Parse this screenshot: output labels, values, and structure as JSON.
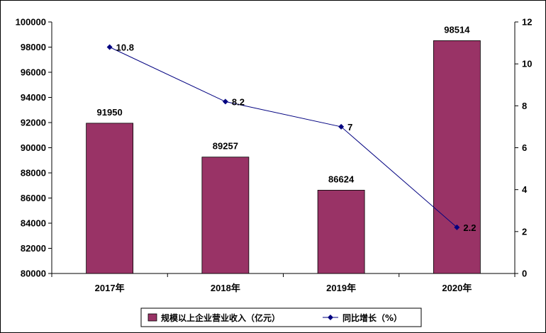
{
  "chart_data": {
    "type": "bar",
    "categories": [
      "2017年",
      "2018年",
      "2019年",
      "2020年"
    ],
    "series": [
      {
        "name": "规模以上企业营业收入（亿元）",
        "type": "bar",
        "axis": "left",
        "values": [
          91950,
          89257,
          86624,
          98514
        ],
        "data_labels": [
          "91950",
          "89257",
          "86624",
          "98514"
        ]
      },
      {
        "name": "同比增长（%）",
        "type": "line",
        "axis": "right",
        "values": [
          10.8,
          8.2,
          7,
          2.2
        ],
        "data_labels": [
          "10.8",
          "8.2",
          "7",
          "2.2"
        ]
      }
    ],
    "y_left": {
      "range": [
        80000,
        100000
      ],
      "ticks": [
        "80000",
        "82000",
        "84000",
        "86000",
        "88000",
        "90000",
        "92000",
        "94000",
        "96000",
        "98000",
        "100000"
      ]
    },
    "y_right": {
      "range": [
        0,
        12
      ],
      "ticks": [
        "0",
        "2",
        "4",
        "6",
        "8",
        "10",
        "12"
      ]
    },
    "title": "",
    "xlabel": "",
    "ylabel": "",
    "grid": false,
    "legend": "bottom-center",
    "colors": {
      "bar": "#993366",
      "line": "#000080",
      "axis": "#000000"
    }
  }
}
